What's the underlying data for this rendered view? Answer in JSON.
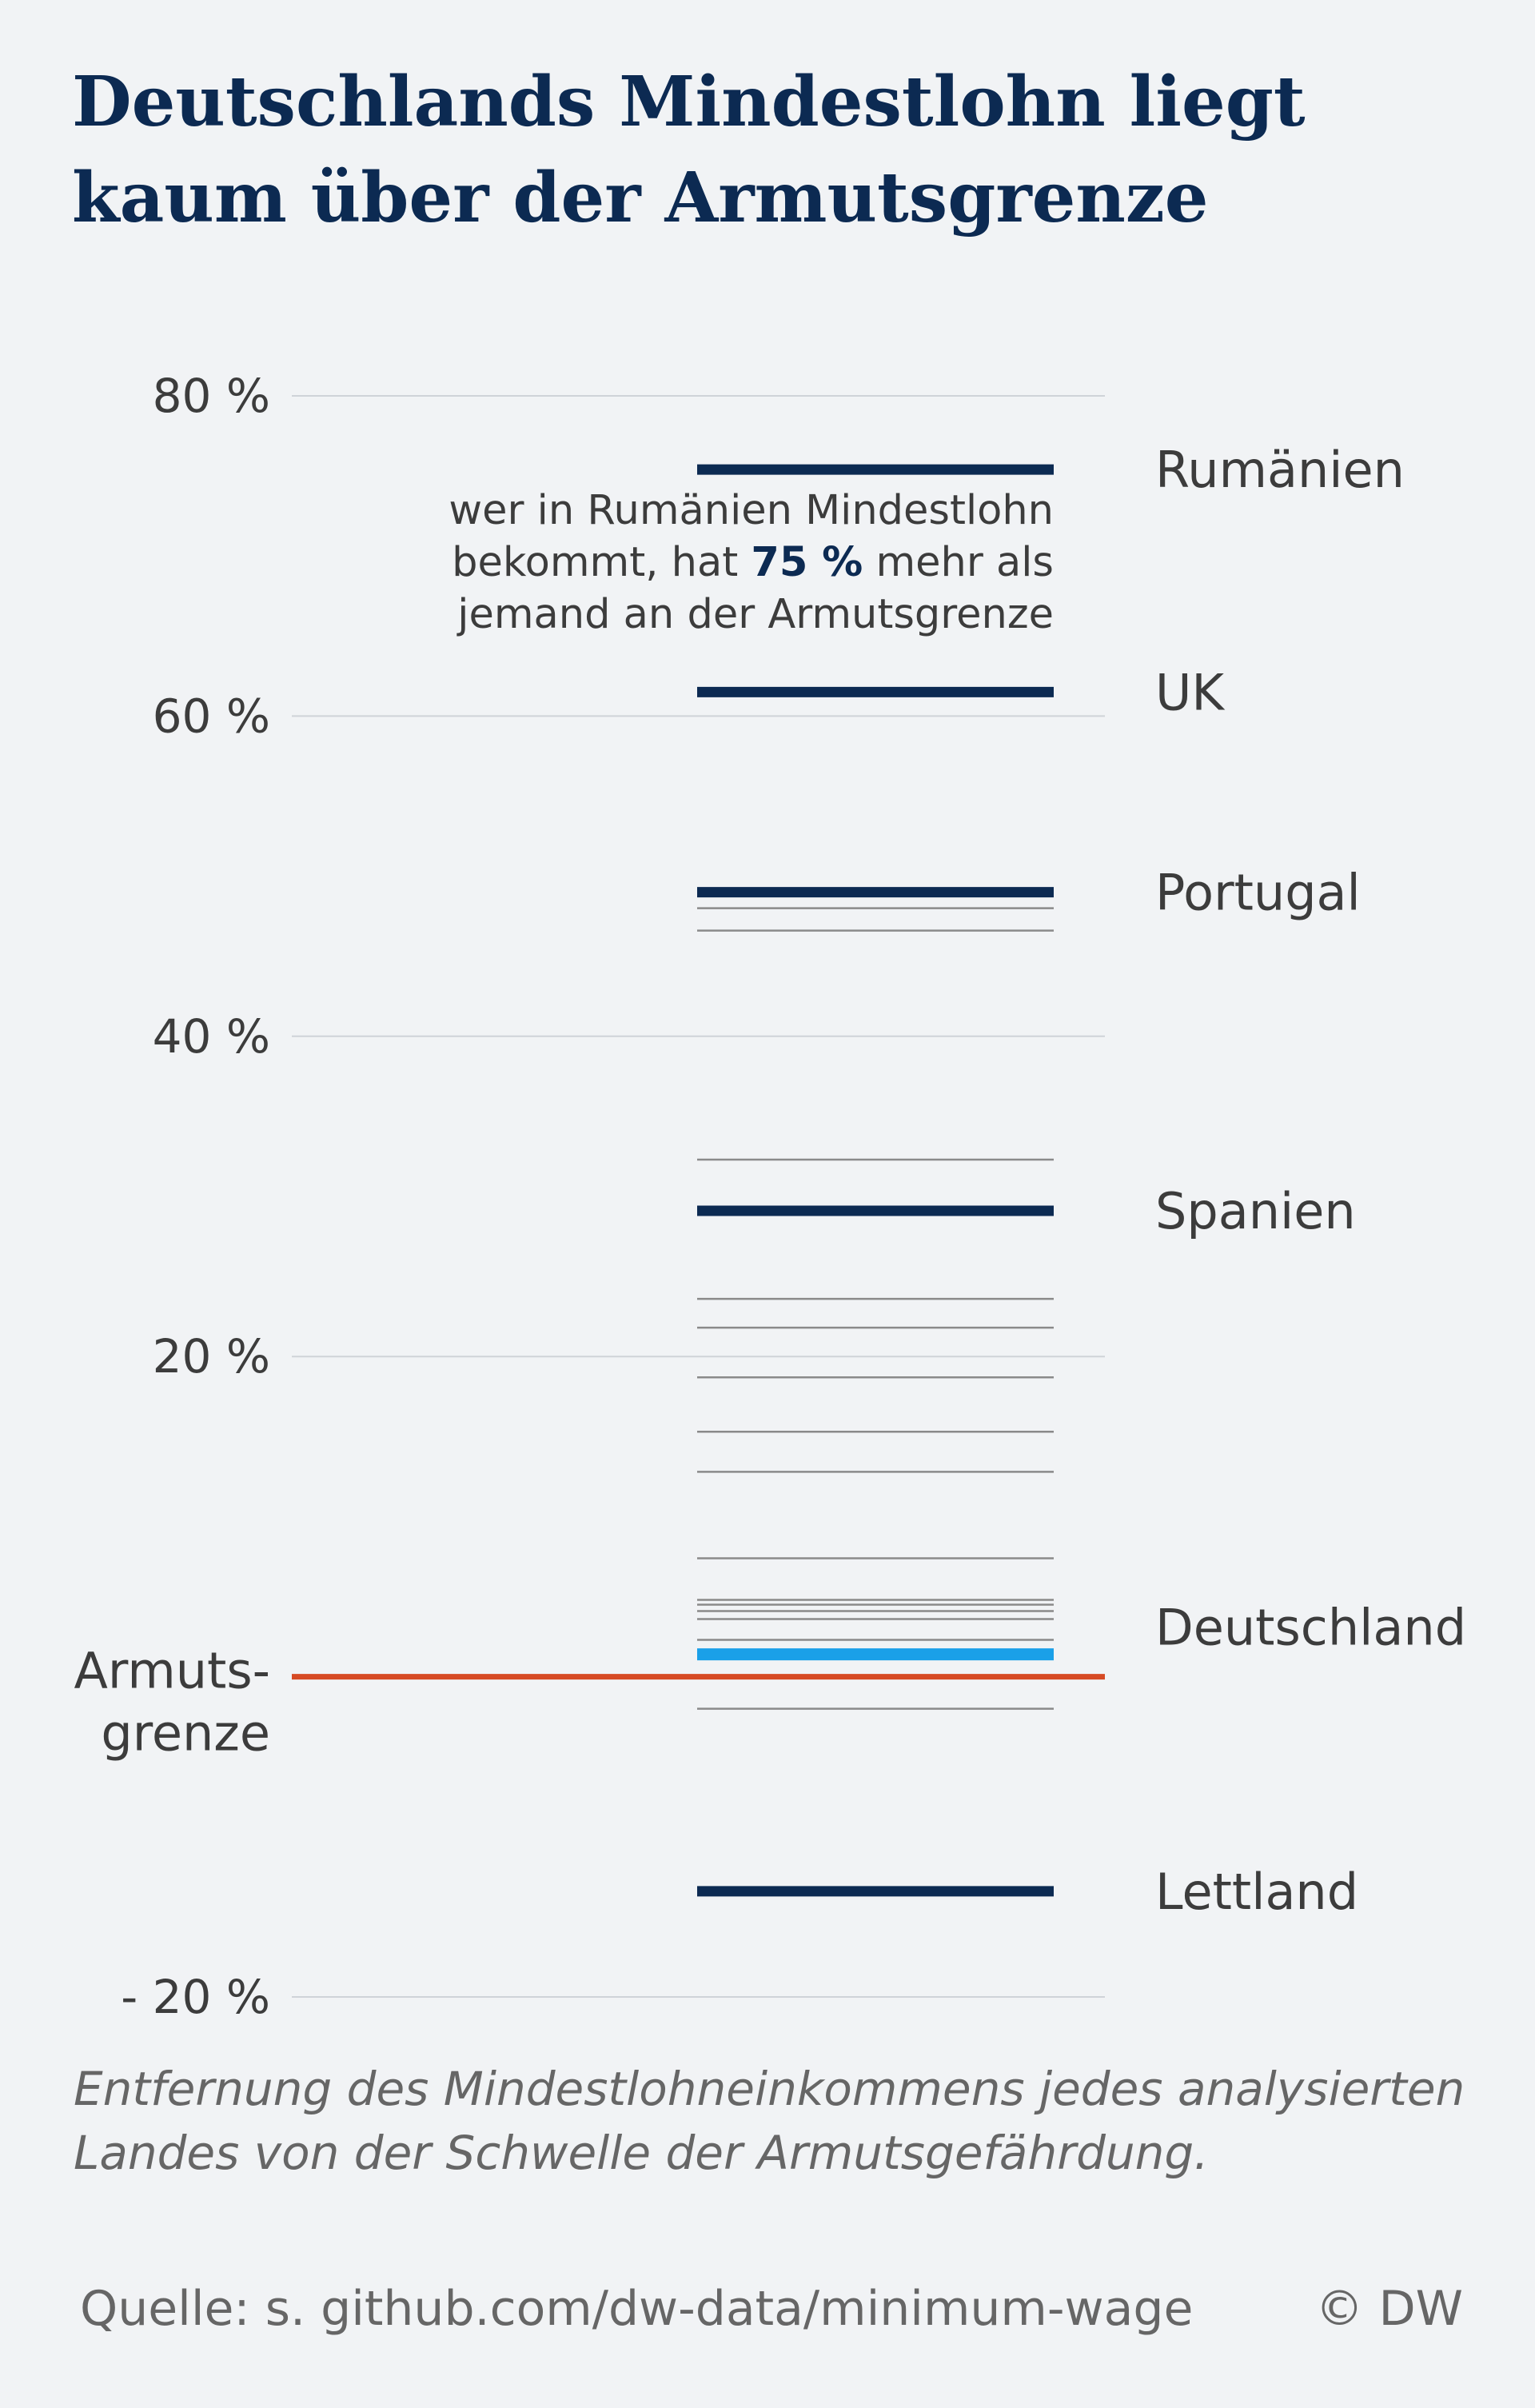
{
  "title": "Deutschlands Mindestlohn liegt kaum über der Armutsgrenze",
  "caption": "Entfernung des Mindestlohneinkommens jedes analysierten Landes von der Schwelle der Armutsgefährdung.",
  "source": "Quelle: s. github.com/dw-data/minimum-wage",
  "copyright": "© DW",
  "annotation": {
    "line1": "wer in Rumänien Mindestlohn",
    "line2_pre": "bekommt, hat ",
    "line2_strong": "75 %",
    "line2_post": " mehr als",
    "line3": "jemand an der Armutsgrenze"
  },
  "colors": {
    "title": "#0c2a52",
    "highlight": "#0c2a52",
    "germany": "#1aa0e8",
    "poverty_line": "#d64a24",
    "other_countries": "#8a8a8a",
    "gridline": "#cfd3d8"
  },
  "chart_data": {
    "type": "line",
    "orientation": "horizontal-level-markers",
    "ylim": [
      -20,
      80
    ],
    "yticks": [
      {
        "value": 80,
        "label": "80 %"
      },
      {
        "value": 60,
        "label": "60 %"
      },
      {
        "value": 40,
        "label": "40 %"
      },
      {
        "value": 20,
        "label": "20 %"
      },
      {
        "value": -20,
        "label": "- 20 %"
      }
    ],
    "reference_line": {
      "value": 0,
      "label_lines": [
        "Armuts-",
        "grenze"
      ]
    },
    "labeled_countries": [
      {
        "name": "Rumänien",
        "value": 75.4,
        "role": "highlight"
      },
      {
        "name": "UK",
        "value": 61.5,
        "role": "highlight"
      },
      {
        "name": "Portugal",
        "value": 49.0,
        "role": "highlight"
      },
      {
        "name": "Spanien",
        "value": 29.1,
        "role": "highlight"
      },
      {
        "name": "Deutschland",
        "value": 1.4,
        "role": "germany"
      },
      {
        "name": "Lettland",
        "value": -13.4,
        "role": "highlight"
      }
    ],
    "other_countries": [
      48.0,
      46.6,
      32.3,
      23.6,
      21.8,
      18.7,
      15.3,
      12.8,
      7.4,
      4.8,
      4.5,
      4.1,
      3.6,
      2.3,
      -2.0
    ]
  }
}
